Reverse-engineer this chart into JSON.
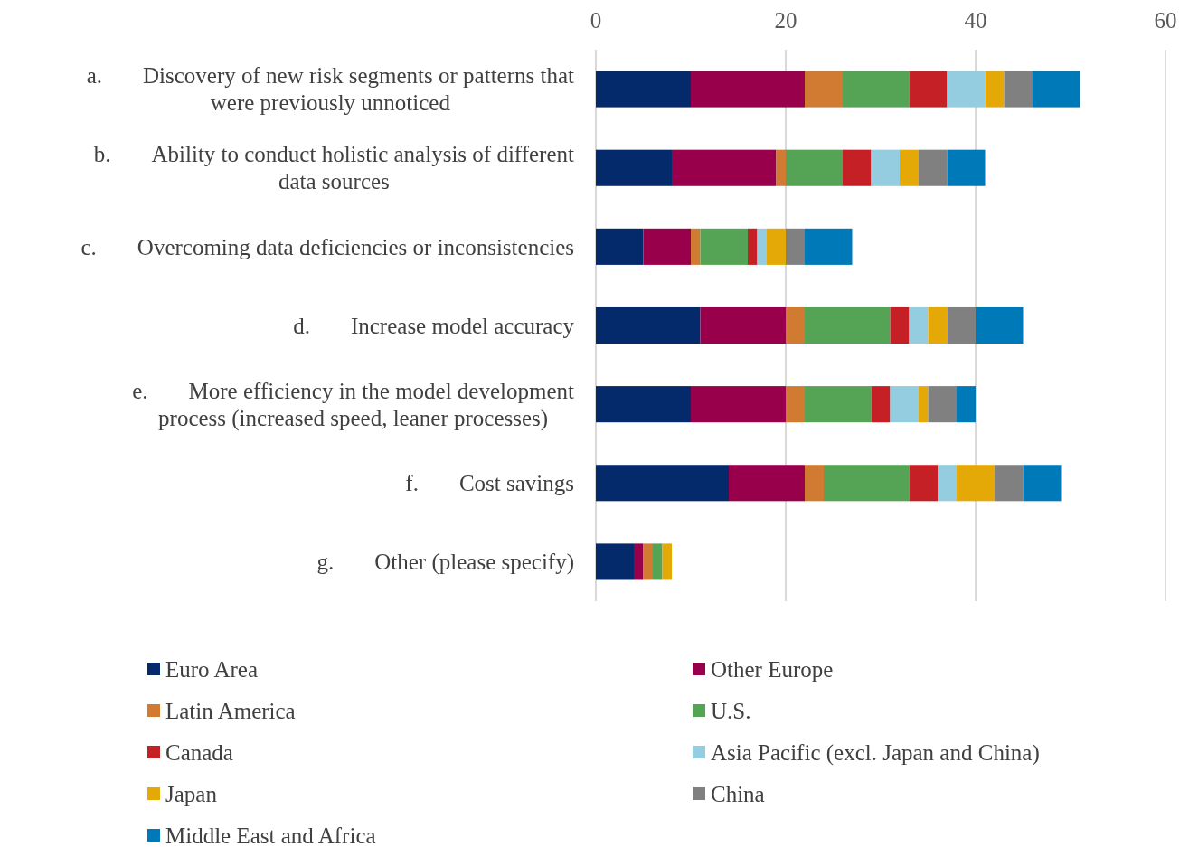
{
  "chart_data": {
    "type": "bar",
    "orientation": "horizontal",
    "stacked": true,
    "categories": [
      "a. Discovery of new risk segments or patterns that were previously unnoticed",
      "b. Ability to conduct holistic analysis of different data sources",
      "c. Overcoming data deficiencies or inconsistencies",
      "d. Increase model accuracy",
      "e. More efficiency in the model development process (increased speed, leaner processes)",
      "f. Cost savings",
      "g. Other (please specify)"
    ],
    "series": [
      {
        "name": "Euro Area",
        "color": "#052a6b",
        "values": [
          10,
          8,
          5,
          11,
          10,
          14,
          4
        ]
      },
      {
        "name": "Other Europe",
        "color": "#99004c",
        "values": [
          12,
          11,
          5,
          9,
          10,
          8,
          1
        ]
      },
      {
        "name": "Latin America",
        "color": "#d07a32",
        "values": [
          4,
          1,
          1,
          2,
          2,
          2,
          1
        ]
      },
      {
        "name": "U.S.",
        "color": "#55a355",
        "values": [
          7,
          6,
          5,
          9,
          7,
          9,
          1
        ]
      },
      {
        "name": "Canada",
        "color": "#c42026",
        "values": [
          4,
          3,
          1,
          2,
          2,
          3,
          0
        ]
      },
      {
        "name": "Asia Pacific (excl. Japan and China)",
        "color": "#93cddf",
        "values": [
          4,
          3,
          1,
          2,
          3,
          2,
          0
        ]
      },
      {
        "name": "Japan",
        "color": "#e5a907",
        "values": [
          2,
          2,
          2,
          2,
          1,
          4,
          1
        ]
      },
      {
        "name": "China",
        "color": "#808080",
        "values": [
          3,
          3,
          2,
          3,
          3,
          3,
          0
        ]
      },
      {
        "name": "Middle East and Africa",
        "color": "#0079b8",
        "values": [
          5,
          4,
          5,
          5,
          2,
          4,
          0
        ]
      }
    ],
    "xlim": [
      0,
      60
    ],
    "xticks": [
      0,
      20,
      40,
      60
    ],
    "grid": "x",
    "legend": "bottom"
  }
}
